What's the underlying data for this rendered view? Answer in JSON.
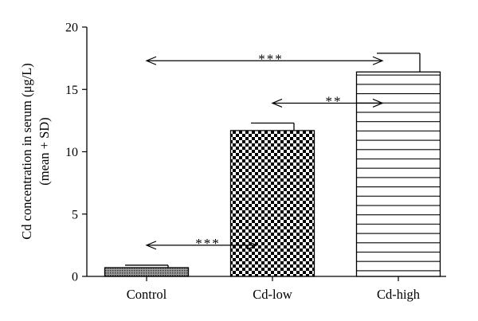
{
  "chart_data": {
    "type": "bar",
    "categories": [
      "Control",
      "Cd-low",
      "Cd-high"
    ],
    "values": [
      0.7,
      11.7,
      16.4
    ],
    "errors": [
      0.2,
      0.6,
      1.5
    ],
    "ylabel_line1": "Cd concentration in serum (μg/L)",
    "ylabel_line2": "(mean + SD)",
    "ylim": [
      0,
      20
    ],
    "yticks": [
      0,
      5,
      10,
      15,
      20
    ],
    "bar_patterns": [
      "fine-hatch",
      "checkerboard",
      "horizontal-lines"
    ],
    "grid": false,
    "annotations": [
      {
        "label": "***",
        "from": "Control",
        "to": "Cd-high",
        "y": 17.3
      },
      {
        "label": "**",
        "from": "Cd-low",
        "to": "Cd-high",
        "y": 13.9
      },
      {
        "label": "***",
        "from": "Control",
        "to": "Cd-low",
        "y": 2.5
      }
    ]
  }
}
